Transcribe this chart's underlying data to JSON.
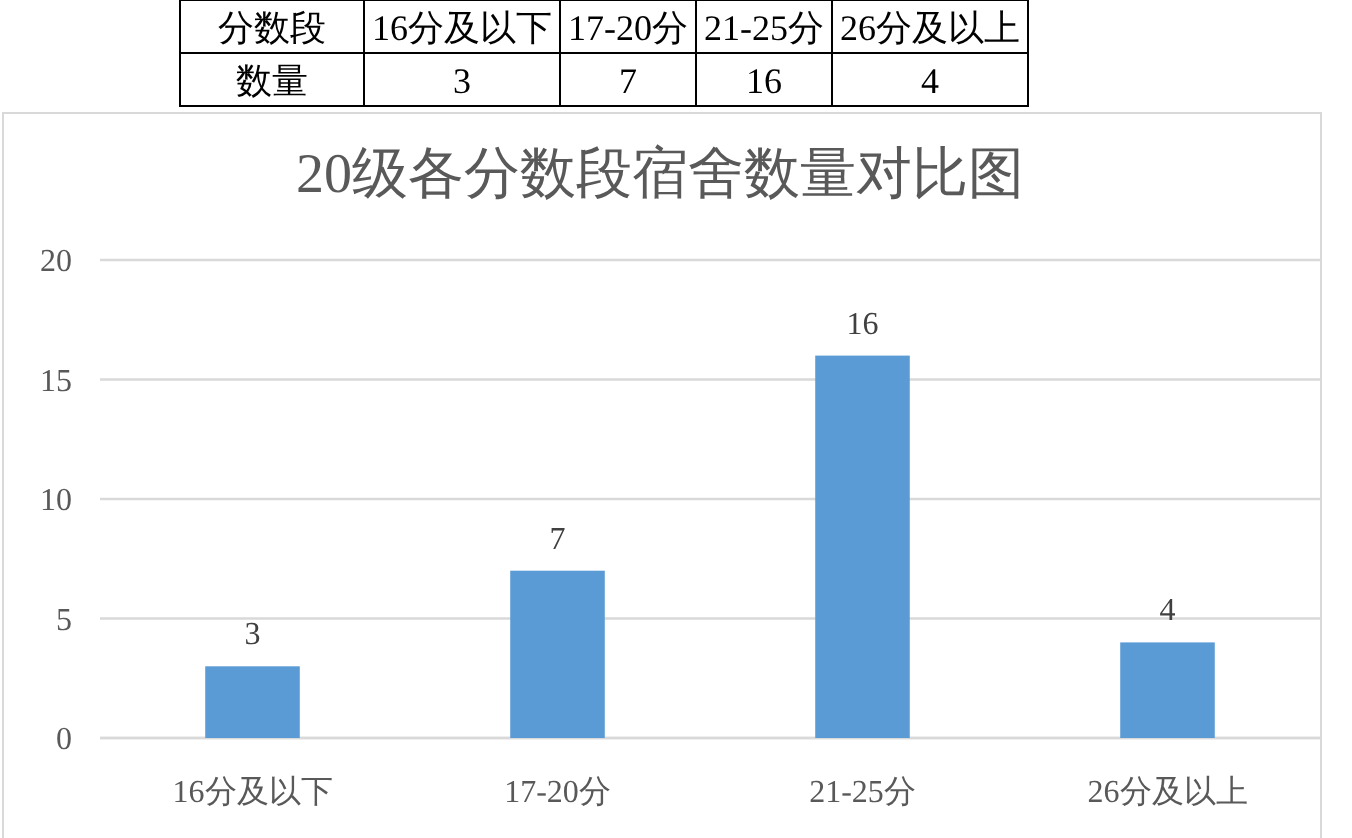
{
  "chart_data": [
    {
      "type": "other",
      "categories": [
        "16分及以下",
        "17-20分",
        "21-25分",
        "26分及以上"
      ],
      "values": [
        3,
        7,
        16,
        4
      ],
      "data_labels": true,
      "annotations": [
        "分数段",
        "数量"
      ]
    },
    {
      "type": "bar",
      "title": "20级各分数段宿舍数量对比图",
      "categories": [
        "16分及以下",
        "17-20分",
        "21-25分",
        "26分及以上"
      ],
      "values": [
        3,
        7,
        16,
        4
      ],
      "color": "#5b9bd5",
      "ylim": [
        0,
        20
      ],
      "yticks": [
        0,
        5,
        10,
        15,
        20
      ],
      "grid": "y",
      "data_labels": true
    }
  ]
}
